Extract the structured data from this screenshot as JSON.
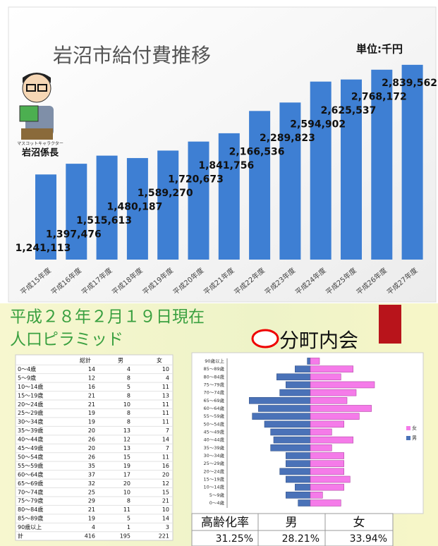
{
  "chart_data": [
    {
      "type": "bar",
      "title": "岩沼市給付費推移",
      "unit": "単位:千円",
      "categories": [
        "平成15年度",
        "平成16年度",
        "平成17年度",
        "平成18年度",
        "平成19年度",
        "平成20年度",
        "平成21年度",
        "平成22年度",
        "平成23年度",
        "平成24年度",
        "平成25年度",
        "平成26年度",
        "平成27年度"
      ],
      "values": [
        1241113,
        1397476,
        1515613,
        1480187,
        1589270,
        1720673,
        1841756,
        2166536,
        2289823,
        2594902,
        2625537,
        2768172,
        2839562
      ],
      "value_labels": [
        "1,241,113",
        "1,397,476",
        "1,515,613",
        "1,480,187",
        "1,589,270",
        "1,720,673",
        "1,841,756",
        "2,166,536",
        "2,289,823",
        "2,594,902",
        "2,625,537",
        "2,768,172",
        "2,839,562"
      ],
      "color": "#3e7fd3",
      "ylim": [
        0,
        2900000
      ]
    },
    {
      "type": "pyramid",
      "categories": [
        "0～4歳",
        "5～9歳",
        "10～14歳",
        "15～19歳",
        "20～24歳",
        "25～29歳",
        "30～34歳",
        "35～39歳",
        "40～44歳",
        "45～49歳",
        "50～54歳",
        "55～59歳",
        "60～64歳",
        "65～69歳",
        "70～74歳",
        "75～79歳",
        "80～84歳",
        "85～89歳",
        "90歳以上"
      ],
      "series": [
        {
          "name": "男",
          "color": "#4a72b8",
          "values": [
            4,
            8,
            5,
            8,
            10,
            8,
            8,
            13,
            12,
            13,
            15,
            19,
            17,
            20,
            10,
            8,
            11,
            5,
            1
          ]
        },
        {
          "name": "女",
          "color": "#f57be9",
          "values": [
            10,
            4,
            11,
            13,
            11,
            11,
            11,
            7,
            14,
            7,
            11,
            16,
            20,
            12,
            15,
            21,
            10,
            14,
            3
          ]
        }
      ],
      "xlim": [
        -30,
        30
      ],
      "legend": "right"
    }
  ],
  "mascot": {
    "caption": "マスコットキャラクター",
    "name": "岩沼係長"
  },
  "header": {
    "date": "平成２８年２月１９日現在",
    "title": "人口ピラミッド",
    "association": "分町内会"
  },
  "table": {
    "columns": [
      "総計",
      "男",
      "女"
    ],
    "rows": [
      [
        "0～4歳",
        14,
        4,
        10
      ],
      [
        "5～9歳",
        12,
        8,
        4
      ],
      [
        "10～14歳",
        16,
        5,
        11
      ],
      [
        "15～19歳",
        21,
        8,
        13
      ],
      [
        "20～24歳",
        21,
        10,
        11
      ],
      [
        "25～29歳",
        19,
        8,
        11
      ],
      [
        "30～34歳",
        19,
        8,
        11
      ],
      [
        "35～39歳",
        20,
        13,
        7
      ],
      [
        "40～44歳",
        26,
        12,
        14
      ],
      [
        "45～49歳",
        20,
        13,
        7
      ],
      [
        "50～54歳",
        26,
        15,
        11
      ],
      [
        "55～59歳",
        35,
        19,
        16
      ],
      [
        "60～64歳",
        37,
        17,
        20
      ],
      [
        "65～69歳",
        32,
        20,
        12
      ],
      [
        "70～74歳",
        25,
        10,
        15
      ],
      [
        "75～79歳",
        29,
        8,
        21
      ],
      [
        "80～84歳",
        21,
        11,
        10
      ],
      [
        "85～89歳",
        19,
        5,
        14
      ],
      [
        "90歳以上",
        4,
        1,
        3
      ],
      [
        "計",
        416,
        195,
        221
      ]
    ]
  },
  "rates": {
    "columns": [
      "高齢化率",
      "男",
      "女"
    ],
    "values": [
      "31.25%",
      "28.21%",
      "33.94%"
    ]
  }
}
